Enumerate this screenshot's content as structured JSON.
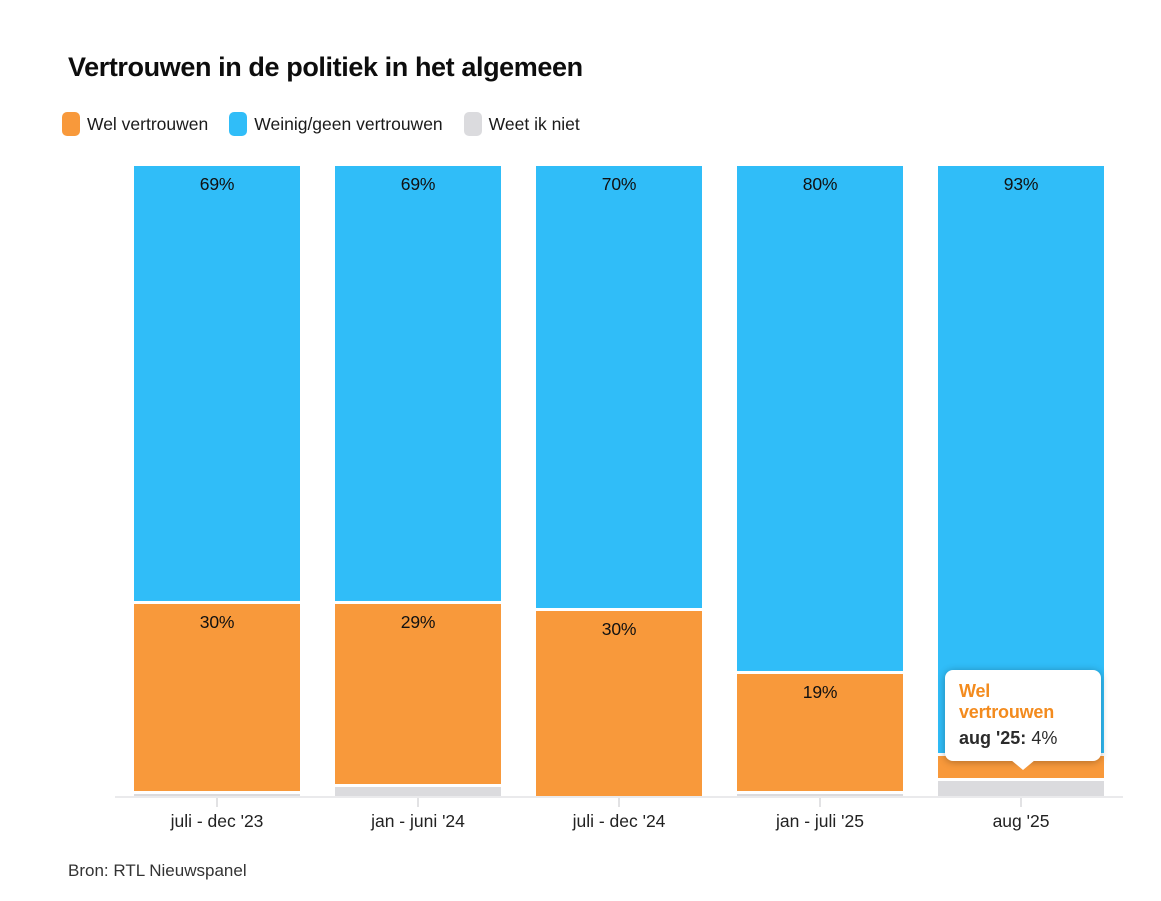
{
  "page": {
    "source": "Bron: RTL Nieuwspanel"
  },
  "legend": [
    {
      "label": "Wel vertrouwen",
      "color": "#F8993B"
    },
    {
      "label": "Weinig/geen vertrouwen",
      "color": "#30BDF8"
    },
    {
      "label": "Weet ik niet",
      "color": "#DBDBDE"
    }
  ],
  "tooltip": {
    "series": "Wel vertrouwen",
    "category": "aug '25:",
    "value": "4%"
  },
  "chart_data": {
    "type": "bar",
    "stacked": true,
    "title": "Vertrouwen in de politiek in het algemeen",
    "categories": [
      "juli - dec '23",
      "jan - juni '24",
      "juli - dec '24",
      "jan - juli '25",
      "aug '25"
    ],
    "series": [
      {
        "name": "Weinig/geen vertrouwen",
        "key": "weinig-geen-vertrouwen",
        "color": "#30BDF8",
        "show_labels": true,
        "values": [
          69,
          69,
          70,
          80,
          93
        ]
      },
      {
        "name": "Wel vertrouwen",
        "key": "wel-vertrouwen",
        "color": "#F8993B",
        "show_labels": true,
        "values": [
          30,
          29,
          30,
          19,
          4
        ]
      },
      {
        "name": "Weet ik niet",
        "key": "weet-ik-niet",
        "color": "#DBDBDE",
        "show_labels": false,
        "values": [
          1,
          2,
          0,
          1,
          3
        ]
      }
    ],
    "value_suffix": "%",
    "ylim": [
      0,
      100
    ],
    "grid": false,
    "legend_position": "top",
    "annotation": "Tooltip on aug '25 bar: Wel vertrouwen aug '25: 4%"
  }
}
